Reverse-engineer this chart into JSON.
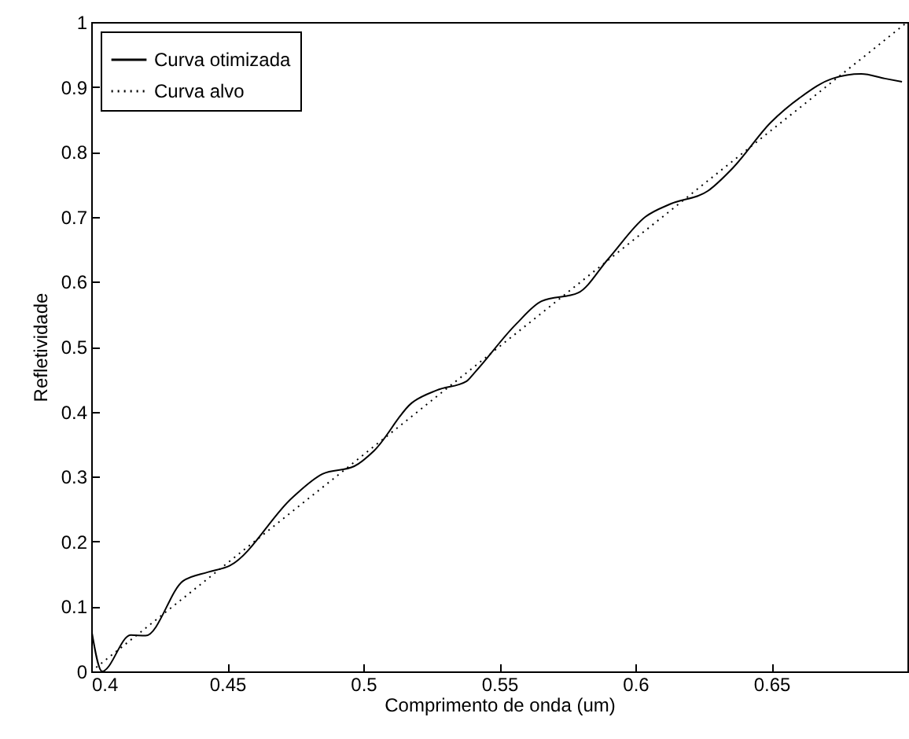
{
  "chart_data": {
    "type": "line",
    "xlabel": "Comprimento de onda (um)",
    "ylabel": "Refletividade",
    "xlim": [
      0.4,
      0.7
    ],
    "xticks": [
      0.4,
      0.45,
      0.5,
      0.55,
      0.6,
      0.65
    ],
    "ylim": [
      0,
      1
    ],
    "yticks": [
      0,
      0.1,
      0.2,
      0.3,
      0.4,
      0.5,
      0.6,
      0.7,
      0.8,
      0.9,
      1
    ],
    "legend": "top left",
    "grid": false,
    "series": [
      {
        "name": "Curva otimizada",
        "color": "#000000",
        "line_style": "solid",
        "x": [
          0.4,
          0.404,
          0.4145,
          0.42,
          0.4337,
          0.443,
          0.451,
          0.474,
          0.485,
          0.4967,
          0.504,
          0.5177,
          0.527,
          0.538,
          0.5407,
          0.556,
          0.5655,
          0.579,
          0.59,
          0.6037,
          0.613,
          0.6267,
          0.636,
          0.6497,
          0.661,
          0.6725,
          0.683,
          0.6917,
          0.698
        ],
        "values": [
          0.066,
          0.0,
          0.056,
          0.055,
          0.139,
          0.153,
          0.163,
          0.268,
          0.304,
          0.316,
          0.34,
          0.413,
          0.433,
          0.447,
          0.459,
          0.534,
          0.57,
          0.583,
          0.635,
          0.7,
          0.72,
          0.74,
          0.776,
          0.845,
          0.885,
          0.913,
          0.92,
          0.913,
          0.908
        ]
      },
      {
        "name": "Curva alvo",
        "color": "#000000",
        "line_style": "dotted",
        "x": [
          0.4,
          0.7
        ],
        "values": [
          0,
          1
        ]
      }
    ]
  }
}
